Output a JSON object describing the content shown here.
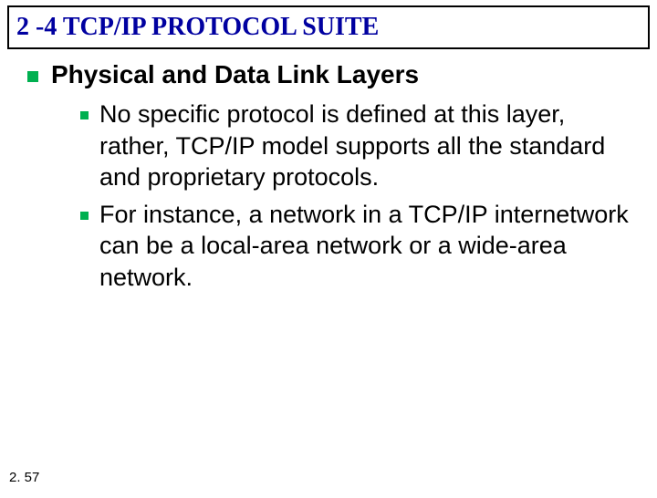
{
  "colors": {
    "title_text": "#0000a0",
    "bullet": "#00b050",
    "body_text": "#000000",
    "background": "#ffffff",
    "title_border": "#000000"
  },
  "title": "2 -4   TCP/IP PROTOCOL SUITE",
  "heading": "Physical and Data Link Layers",
  "points": [
    "No specific protocol is defined at this layer, rather, TCP/IP model supports all the standard and proprietary protocols.",
    "For instance, a network in a TCP/IP internetwork can be a local-area network or a wide-area network."
  ],
  "footer": "2. 57"
}
